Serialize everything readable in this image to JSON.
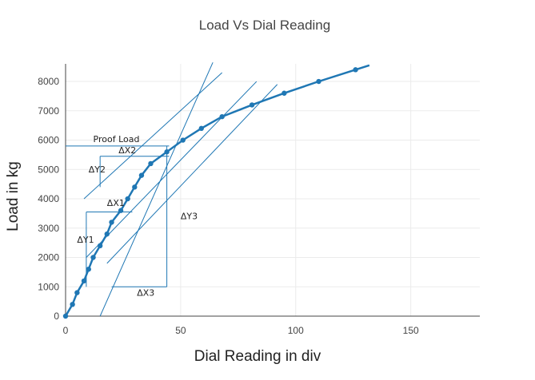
{
  "chart_data": {
    "type": "line",
    "title": "Load Vs Dial Reading",
    "xlabel": "Dial Reading in div",
    "ylabel": "Load in kg",
    "xlim": [
      0,
      180
    ],
    "ylim": [
      0,
      8600
    ],
    "xticks": [
      0,
      50,
      100,
      150
    ],
    "yticks": [
      0,
      1000,
      2000,
      3000,
      4000,
      5000,
      6000,
      7000,
      8000
    ],
    "grid": true,
    "series": [
      {
        "color": "#1f77b4",
        "x": [
          0,
          3,
          5,
          8,
          10,
          12,
          15,
          18,
          20,
          24,
          27,
          30,
          33,
          37,
          44,
          51,
          59,
          68,
          81,
          95,
          110,
          126,
          132
        ],
        "y": [
          0,
          400,
          800,
          1200,
          1600,
          2000,
          2400,
          2800,
          3200,
          3600,
          4000,
          4400,
          4800,
          5200,
          5600,
          6000,
          6400,
          6800,
          7200,
          7600,
          8000,
          8400,
          8550
        ]
      }
    ],
    "tangent_lines": [
      {
        "from": [
          8,
          4000
        ],
        "to": [
          68,
          8300
        ]
      },
      {
        "from": [
          9,
          2000
        ],
        "to": [
          83,
          8000
        ]
      },
      {
        "from": [
          18,
          1800
        ],
        "to": [
          92,
          7900
        ]
      },
      {
        "from": [
          15,
          0
        ],
        "to": [
          64,
          8650
        ]
      }
    ],
    "proof_load": {
      "value": 5800,
      "label": "Proof Load",
      "x_end": 45
    },
    "annotations": [
      {
        "text": "ΔX2",
        "x": 23,
        "y": 5550
      },
      {
        "text": "ΔY2",
        "x": 10,
        "y": 4900
      },
      {
        "text": "ΔX1",
        "x": 18,
        "y": 3750
      },
      {
        "text": "ΔY1",
        "x": 5,
        "y": 2500
      },
      {
        "text": "ΔY3",
        "x": 50,
        "y": 3300
      },
      {
        "text": "ΔX3",
        "x": 31,
        "y": 700
      }
    ],
    "slope_triangles": [
      {
        "vertical": {
          "x": 15,
          "y1": 4400,
          "y2": 5450
        },
        "horizontal": {
          "y": 5450,
          "x1": 15,
          "x2": 45
        }
      },
      {
        "vertical": {
          "x": 9,
          "y1": 1000,
          "y2": 3550
        },
        "horizontal": {
          "y": 3550,
          "x1": 9,
          "x2": 29
        }
      },
      {
        "vertical": {
          "x": 44,
          "y1": 1000,
          "y2": 5800
        },
        "horizontal": {
          "y": 1000,
          "x1": 20,
          "x2": 44
        }
      }
    ]
  }
}
